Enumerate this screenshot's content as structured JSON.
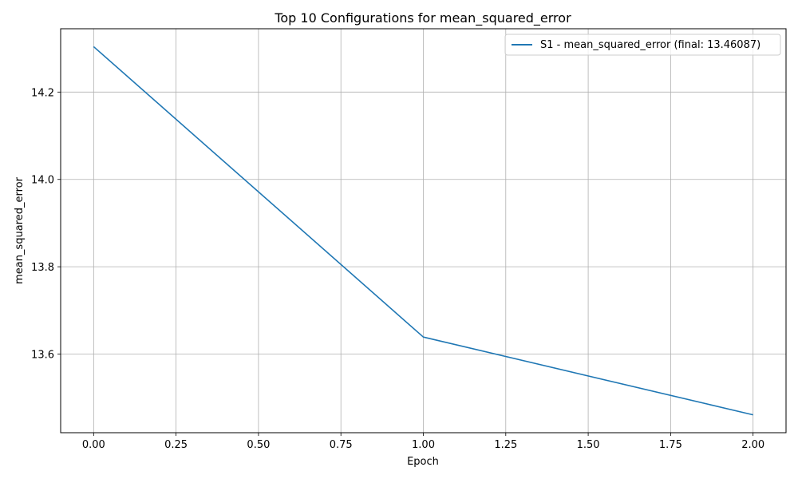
{
  "chart_data": {
    "type": "line",
    "title": "Top 10 Configurations for mean_squared_error",
    "xlabel": "Epoch",
    "ylabel": "mean_squared_error",
    "xlim": [
      -0.1,
      2.1
    ],
    "ylim": [
      13.42,
      14.345
    ],
    "x_ticks": [
      "0.00",
      "0.25",
      "0.50",
      "0.75",
      "1.00",
      "1.25",
      "1.50",
      "1.75",
      "2.00"
    ],
    "y_ticks": [
      "13.6",
      "13.8",
      "14.0",
      "14.2"
    ],
    "grid": true,
    "legend_position": "top-right",
    "series": [
      {
        "name": "S1 - mean_squared_error (final: 13.46087)",
        "color": "#1f77b4",
        "x": [
          0,
          1,
          2
        ],
        "y": [
          14.304,
          13.639,
          13.46087
        ]
      }
    ]
  }
}
